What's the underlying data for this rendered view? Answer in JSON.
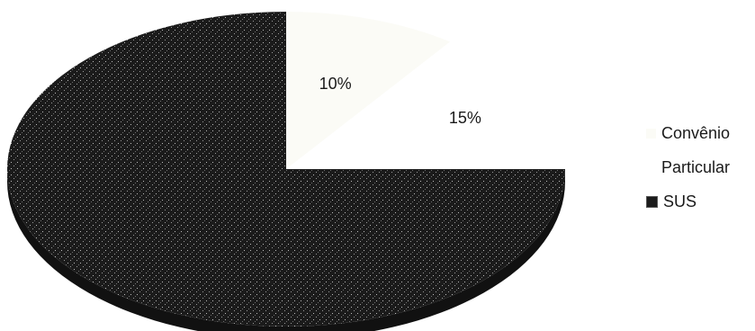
{
  "chart_data": {
    "type": "pie",
    "title": "",
    "categories": [
      "Convênio",
      "Particular",
      "SUS"
    ],
    "values": [
      10,
      15,
      75
    ],
    "data_labels": [
      "10%",
      "15%",
      ""
    ],
    "colors": [
      "#fbfbf6",
      "#ffffff",
      "#1b1b1b"
    ],
    "legend_position": "right",
    "three_d": true
  }
}
